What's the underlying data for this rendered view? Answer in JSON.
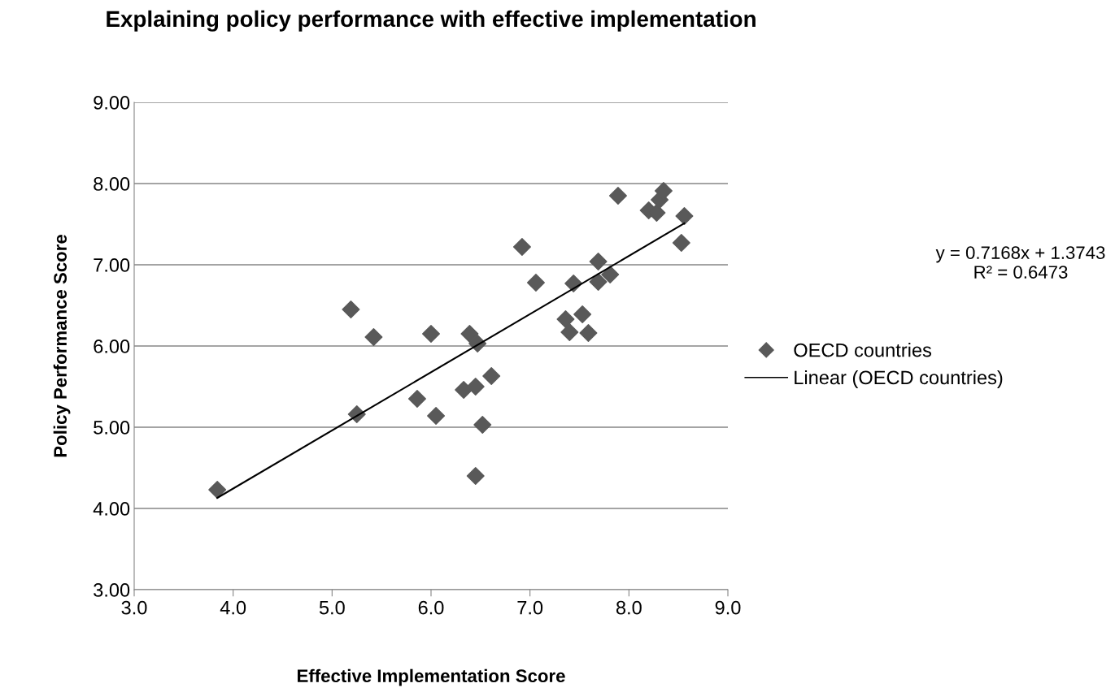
{
  "chart_data": {
    "type": "scatter",
    "title": "Explaining policy performance with effective implementation",
    "xlabel": "Effective Implementation Score",
    "ylabel": "Policy Performance Score",
    "series": [
      {
        "name": "OECD countries",
        "color": "#595959",
        "marker": "diamond",
        "x": [
          3.84,
          5.19,
          5.25,
          5.42,
          5.86,
          6.0,
          6.05,
          6.33,
          6.39,
          6.45,
          6.47,
          6.45,
          6.52,
          6.61,
          6.92,
          7.06,
          7.36,
          7.4,
          7.44,
          7.53,
          7.59,
          7.69,
          7.69,
          7.81,
          7.89,
          8.2,
          8.28,
          8.31,
          8.35,
          8.53,
          8.56
        ],
        "values": [
          4.23,
          6.45,
          5.16,
          6.11,
          5.35,
          6.15,
          5.14,
          5.46,
          6.15,
          5.5,
          6.03,
          4.4,
          5.03,
          5.63,
          7.22,
          6.78,
          6.33,
          6.17,
          6.77,
          6.39,
          6.16,
          7.04,
          6.79,
          6.88,
          7.85,
          7.67,
          7.64,
          7.8,
          7.91,
          7.27,
          7.6
        ]
      },
      {
        "name": "Linear (OECD countries)",
        "type": "line",
        "color": "#000000",
        "marker": "none",
        "line_style": "solid",
        "x": [
          3.84,
          8.56
        ],
        "values": [
          4.13,
          7.51
        ]
      }
    ],
    "annotations": [
      "y = 0.7168x + 1.3743\nR² = 0.6473"
    ],
    "xlim": [
      3,
      9
    ],
    "xticks": [
      {
        "value": 3,
        "label": "3.0"
      },
      {
        "value": 4,
        "label": "4.0"
      },
      {
        "value": 5,
        "label": "5.0"
      },
      {
        "value": 6,
        "label": "6.0"
      },
      {
        "value": 7,
        "label": "7.0"
      },
      {
        "value": 8,
        "label": "8.0"
      },
      {
        "value": 9,
        "label": "9.0"
      }
    ],
    "ylim": [
      3,
      9
    ],
    "yticks": [
      {
        "value": 3,
        "label": "3.00"
      },
      {
        "value": 4,
        "label": "4.00"
      },
      {
        "value": 5,
        "label": "5.00"
      },
      {
        "value": 6,
        "label": "6.00"
      },
      {
        "value": 7,
        "label": "7.00"
      },
      {
        "value": 8,
        "label": "8.00"
      },
      {
        "value": 9,
        "label": "9.00"
      }
    ],
    "grid": "y",
    "legend": "right"
  }
}
